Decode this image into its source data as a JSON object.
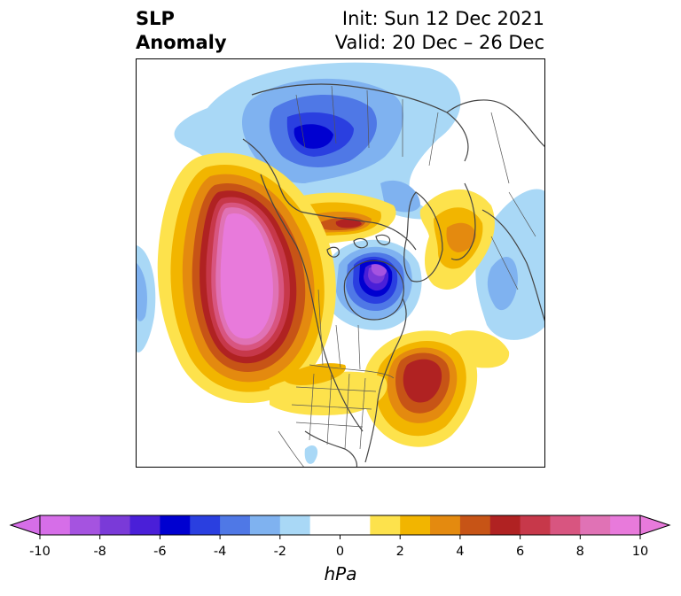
{
  "header": {
    "variable_line1": "SLP",
    "variable_line2": "Anomaly",
    "init": "Init: Sun 12 Dec 2021",
    "valid": "Valid: 20 Dec – 26 Dec"
  },
  "colorbar": {
    "unit": "hPa",
    "ticks": [
      "-10",
      "-8",
      "-6",
      "-4",
      "-2",
      "0",
      "2",
      "4",
      "6",
      "8",
      "10"
    ],
    "range": [
      -10,
      10
    ],
    "extend": "both",
    "colors": [
      "#d66ee8",
      "#a553e0",
      "#7a3ad8",
      "#4a1fd8",
      "#0000d0",
      "#2a3fe0",
      "#4f78e6",
      "#7fb2f0",
      "#a9d8f6",
      "#ffffff",
      "#ffffff",
      "#fde24c",
      "#f2b500",
      "#e48a0f",
      "#c75416",
      "#b02222",
      "#c7384a",
      "#d85580",
      "#e072b5",
      "#e87adb"
    ]
  },
  "map": {
    "projection": "north-polar-stereographic",
    "region": "North America / Arctic",
    "features": [
      "coastlines",
      "country borders",
      "US states",
      "Canadian provinces"
    ],
    "anomaly_centers": [
      {
        "sign": "positive",
        "location": "Gulf of Alaska / Pacific NW",
        "peak_hpa": 10
      },
      {
        "sign": "positive",
        "location": "Western North Atlantic",
        "peak_hpa": 6
      },
      {
        "sign": "positive",
        "location": "Arctic north of Alaska",
        "peak_hpa": 6
      },
      {
        "sign": "negative",
        "location": "Hudson Bay / Baffin",
        "peak_hpa": -8
      },
      {
        "sign": "negative",
        "location": "Greenland Sea / Scandinavia",
        "peak_hpa": -6
      }
    ]
  }
}
